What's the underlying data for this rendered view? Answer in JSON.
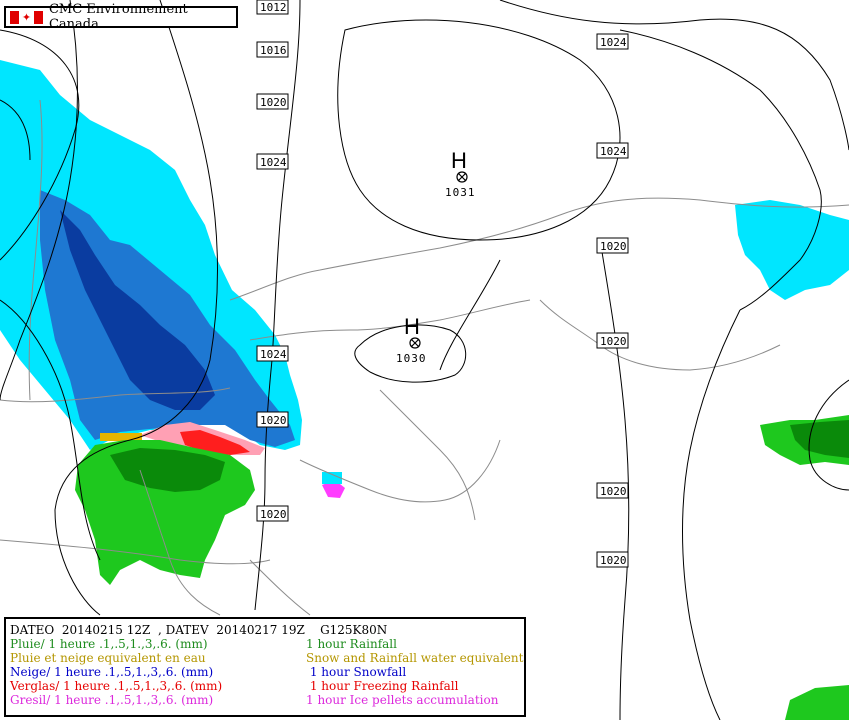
{
  "agency": {
    "name": "CMC Environnement Canada",
    "flag_icon": "canada-flag-icon",
    "flag_red": "#e00000"
  },
  "isobars": [
    "1012",
    "1016",
    "1020",
    "1024",
    "1024",
    "1024",
    "1020",
    "1020",
    "1024",
    "1020",
    "1020",
    "1020",
    "1020",
    "1020"
  ],
  "highs": [
    {
      "label": "H",
      "value": "1031"
    },
    {
      "label": "H",
      "value": "1030"
    }
  ],
  "colors": {
    "rain": "#1ec81e",
    "rain_dark": "#0a8a0a",
    "snow_light": "#00e6ff",
    "snow_mid": "#1e78d2",
    "snow_dark": "#0a3ca0",
    "freezing_rain": "#ff1e1e",
    "freezing_rain_light": "#ffa0b4",
    "ice_pellets": "#ff3cff",
    "mixed": "#e6b400",
    "coastline": "#8c8c8c"
  },
  "legend": {
    "header": "DATEO  20140215 12Z  , DATEV  20140217 19Z    G125K80N",
    "rows": [
      {
        "left": "Pluie/ 1 heure .1,.5,1.,3,.6. (mm)",
        "right": "1 hour Rainfall",
        "color": "#1e8c1e"
      },
      {
        "left": "Pluie et neige equivalent en eau",
        "right": "Snow and Rainfall water equivalent",
        "color": "#b49600"
      },
      {
        "left": "Neige/ 1 heure .1,.5,1.,3,.6. (mm)",
        "right": " 1 hour Snowfall",
        "color": "#0000c8"
      },
      {
        "left": "Verglas/ 1 heure .1,.5,1.,3,.6. (mm)",
        "right": " 1 hour Freezing Rainfall",
        "color": "#e60000"
      },
      {
        "left": "Gresil/ 1 heure .1,.5,1.,3,.6. (mm)",
        "right": "1 hour Ice pellets accumulation",
        "color": "#dc28dc"
      }
    ]
  }
}
